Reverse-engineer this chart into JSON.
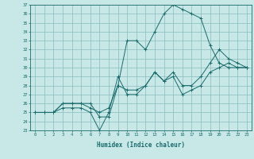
{
  "xlabel": "Humidex (Indice chaleur)",
  "ylabel": "",
  "bg_color": "#c8e8e8",
  "grid_color": "#88bbbb",
  "line_color": "#1a6b6b",
  "xlim": [
    -0.5,
    23.5
  ],
  "ylim": [
    23,
    37
  ],
  "xticks": [
    0,
    1,
    2,
    3,
    4,
    5,
    6,
    7,
    8,
    9,
    10,
    11,
    12,
    13,
    14,
    15,
    16,
    17,
    18,
    19,
    20,
    21,
    22,
    23
  ],
  "yticks": [
    23,
    24,
    25,
    26,
    27,
    28,
    29,
    30,
    31,
    32,
    33,
    34,
    35,
    36,
    37
  ],
  "line1_x": [
    0,
    1,
    2,
    3,
    4,
    5,
    6,
    7,
    8,
    9,
    10,
    11,
    12,
    13,
    14,
    15,
    16,
    17,
    18,
    19,
    20,
    21,
    22,
    23
  ],
  "line1_y": [
    25,
    25,
    25,
    25.5,
    25.5,
    25.5,
    25,
    23,
    25,
    29,
    27,
    27,
    28,
    29.5,
    28.5,
    29,
    27,
    27.5,
    28,
    29.5,
    30,
    30.5,
    30,
    30
  ],
  "line2_x": [
    0,
    1,
    2,
    3,
    4,
    5,
    6,
    7,
    8,
    9,
    10,
    11,
    12,
    13,
    14,
    15,
    16,
    17,
    18,
    19,
    20,
    21,
    22,
    23
  ],
  "line2_y": [
    25,
    25,
    25,
    26,
    26,
    26,
    26,
    24.5,
    24.5,
    28,
    33,
    33,
    32,
    34,
    36,
    37,
    36.5,
    36,
    35.5,
    32.5,
    30.5,
    30,
    30,
    30
  ],
  "line3_x": [
    0,
    1,
    2,
    3,
    4,
    5,
    6,
    7,
    8,
    9,
    10,
    11,
    12,
    13,
    14,
    15,
    16,
    17,
    18,
    19,
    20,
    21,
    22,
    23
  ],
  "line3_y": [
    25,
    25,
    25,
    26,
    26,
    26,
    25.5,
    25,
    25.5,
    28,
    27.5,
    27.5,
    28,
    29.5,
    28.5,
    29.5,
    28,
    28,
    29,
    30.5,
    32,
    31,
    30.5,
    30
  ]
}
